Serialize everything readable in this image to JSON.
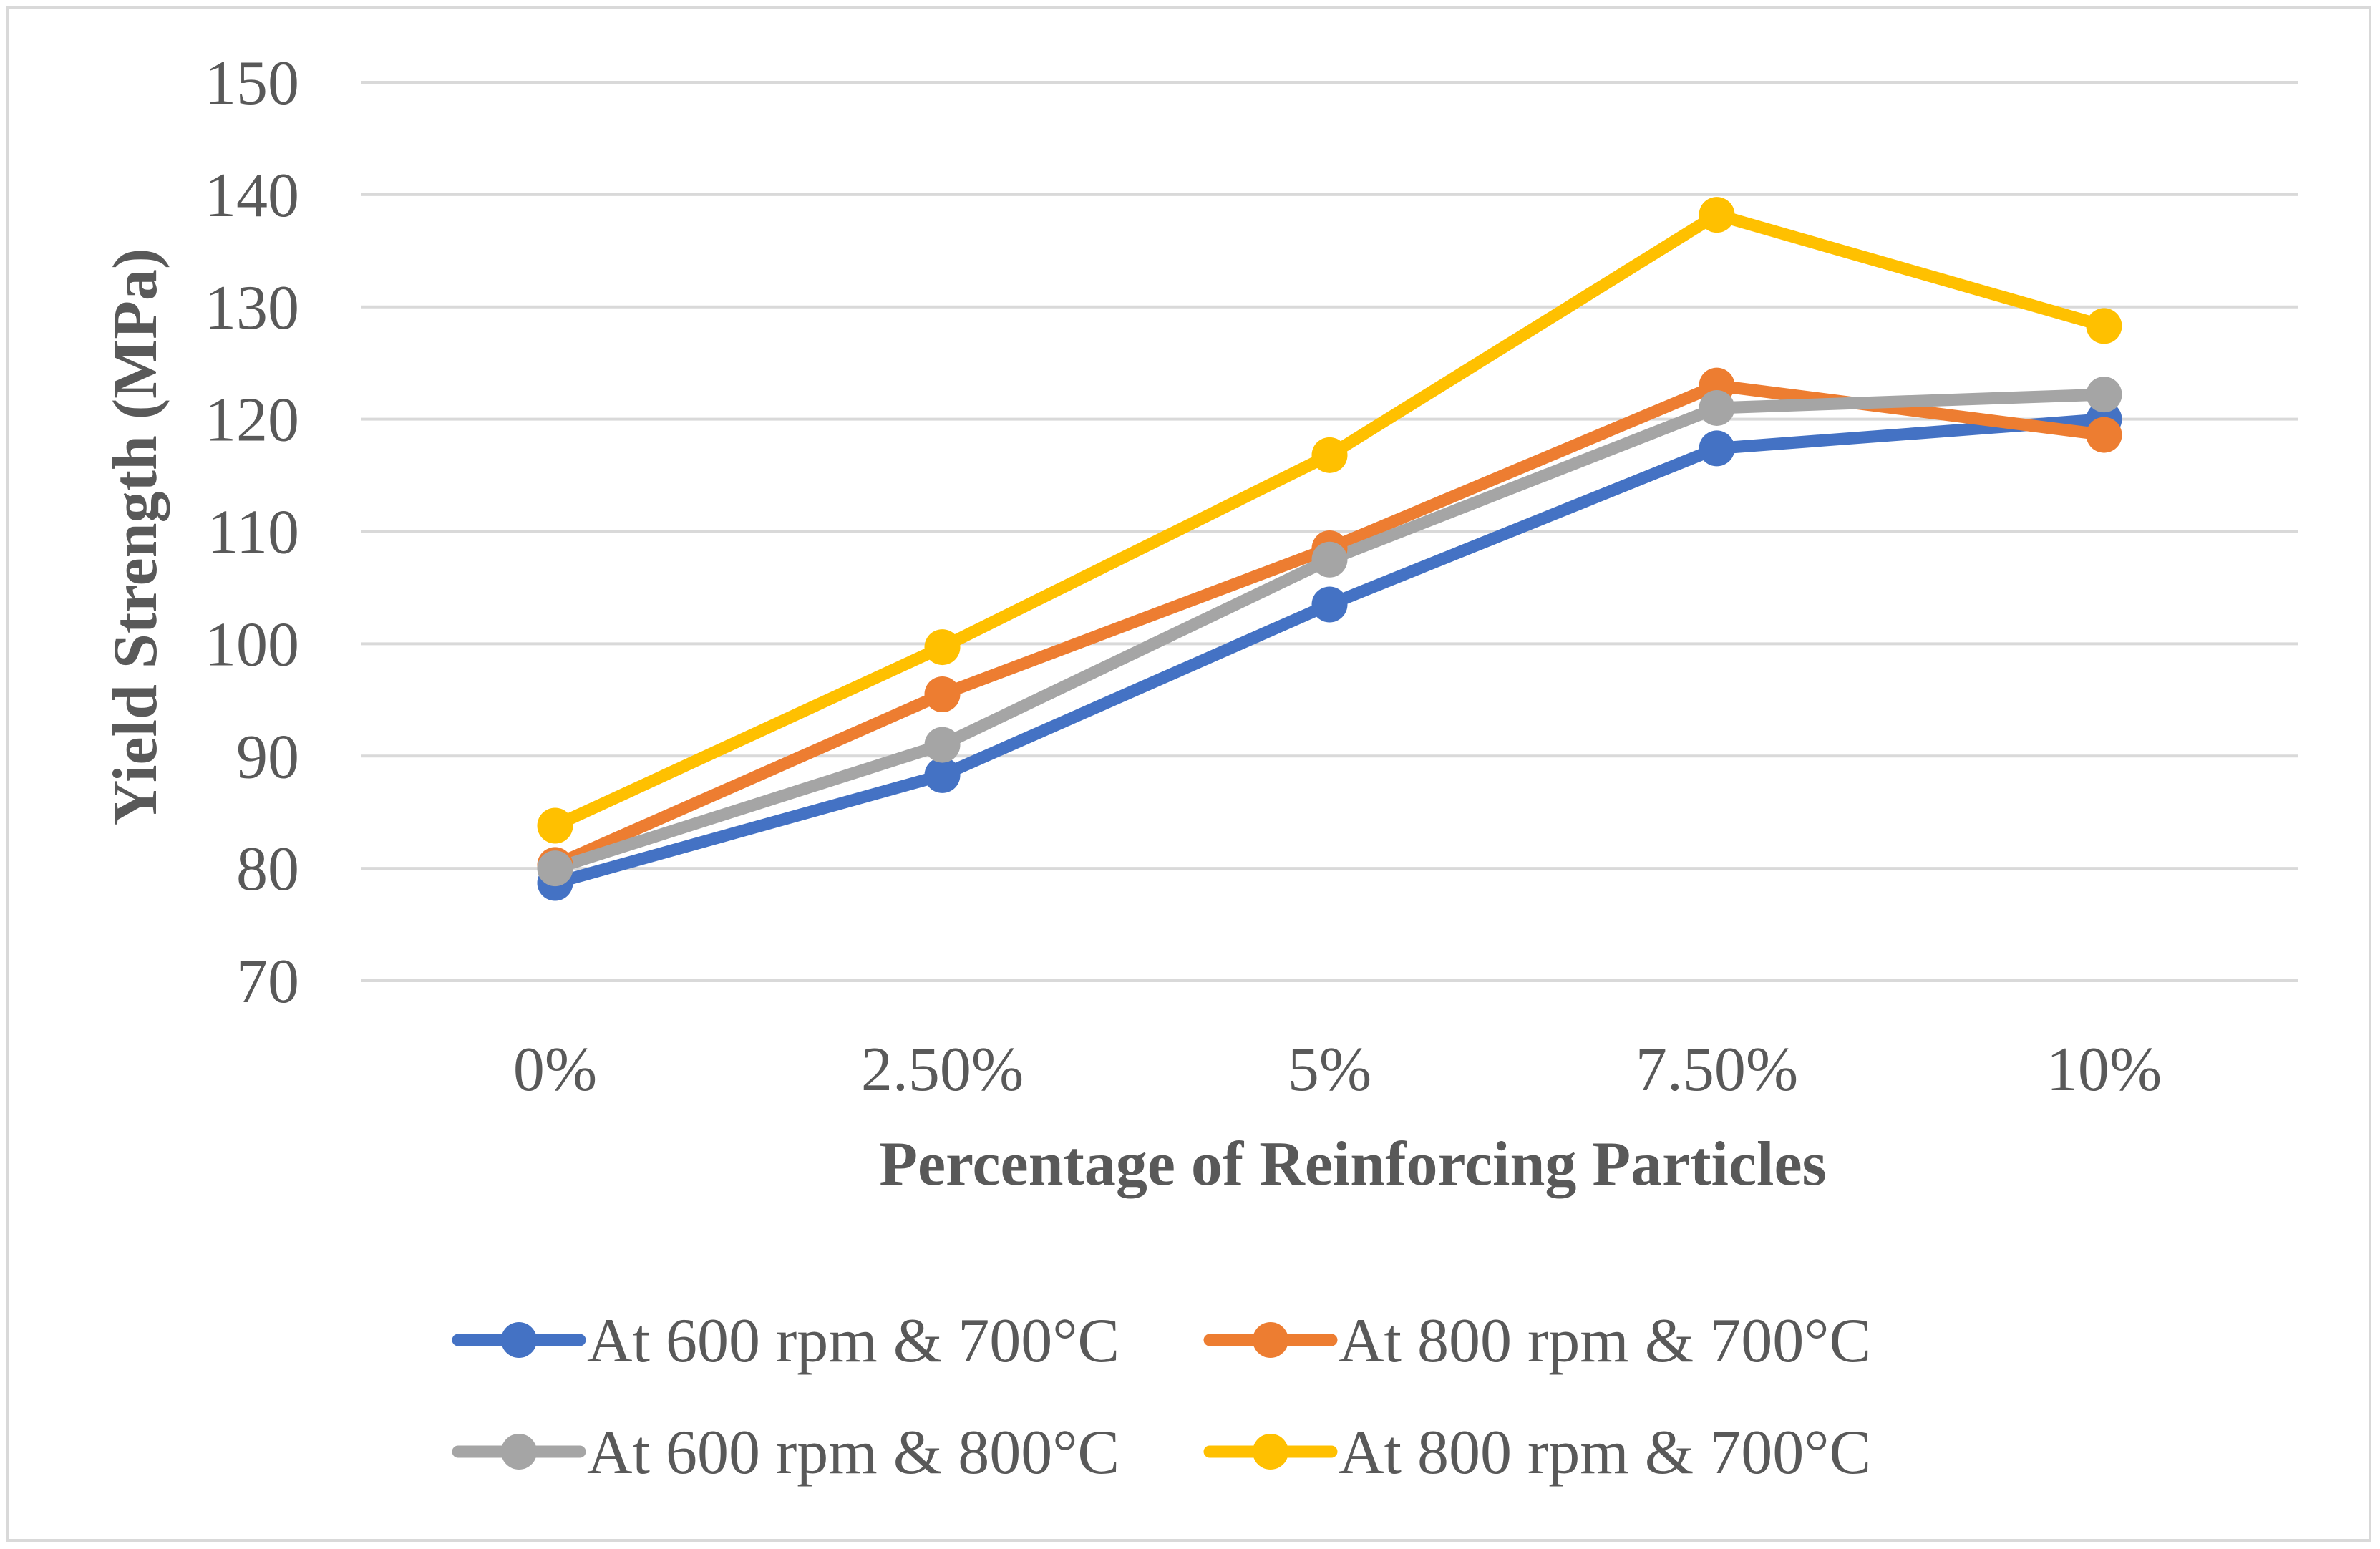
{
  "chart_data": {
    "type": "line",
    "title": "",
    "xlabel": "Percentage of Reinforcing Particles",
    "ylabel": "Yield Strength (MPa)",
    "categories": [
      "0%",
      "2.50%",
      "5%",
      "7.50%",
      "10%"
    ],
    "ylim": [
      70,
      150
    ],
    "yticks": [
      70,
      80,
      90,
      100,
      110,
      120,
      130,
      140,
      150
    ],
    "grid": true,
    "legend_position": "bottom",
    "series": [
      {
        "name": "At 600 rpm & 700°C",
        "color": "#4472C4",
        "values": [
          78.7,
          88.3,
          103.5,
          117.4,
          120.0
        ]
      },
      {
        "name": "At 800 rpm & 700°C",
        "color": "#ED7D31",
        "values": [
          80.3,
          95.5,
          108.5,
          123.0,
          118.6
        ]
      },
      {
        "name": "At 600 rpm & 800°C",
        "color": "#A5A5A5",
        "values": [
          80.0,
          91.0,
          107.5,
          121.0,
          122.2
        ]
      },
      {
        "name": "At 800 rpm & 700°C",
        "color": "#FFC000",
        "values": [
          83.8,
          99.7,
          116.8,
          138.2,
          128.3
        ]
      }
    ]
  }
}
